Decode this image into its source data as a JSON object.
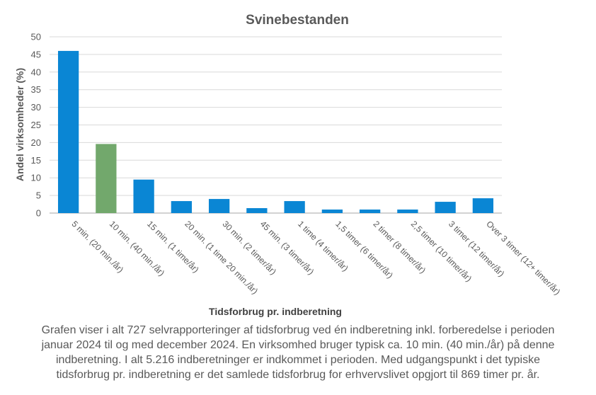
{
  "chart_data": {
    "type": "bar",
    "title": "Svinebestanden",
    "xlabel": "Tidsforbrug pr. indberetning",
    "ylabel": "Andel virksomheder  (%)",
    "ylim": [
      0,
      50
    ],
    "yticks": [
      0,
      5,
      10,
      15,
      20,
      25,
      30,
      35,
      40,
      45,
      50
    ],
    "grid": true,
    "categories": [
      "5 min. (20 min./år)",
      "10 min. (40 min./år)",
      "15 min. (1 time/år)",
      "20 min. (1 time 20 min./år)",
      "30 min. (2 timer/år)",
      "45 min. (3 timer/år)",
      "1 time (4 timer/år)",
      "1,5 timer (6 timer/år)",
      "2 timer (8 timer/år)",
      "2,5 timer (10 timer/år)",
      "3 timer (12 timer/år)",
      "Over 3 timer (12+ timer/år)"
    ],
    "values": [
      46,
      19.6,
      9.5,
      3.4,
      4.0,
      1.4,
      3.4,
      1.0,
      1.0,
      1.0,
      3.2,
      4.2
    ],
    "bar_color": "#0a86d4",
    "highlight_color": "#72a86c",
    "highlight_index": 1
  },
  "caption": {
    "lines": [
      "Grafen viser i alt 727 selvrapporteringer  af tidsforbrug ved én indberetning inkl. forberedelse i perioden",
      "januar 2024 til og med december 2024. En virksomhed bruger typisk ca. 10 min. (40 min./år) på denne",
      "indberetning. I alt 5.216 indberetninger er indkommet i perioden. Med udgangspunkt i det typiske",
      "tidsforbrug pr. indberetning er det samlede tidsforbrug for erhvervslivet opgjort til 869 timer pr. år."
    ]
  }
}
